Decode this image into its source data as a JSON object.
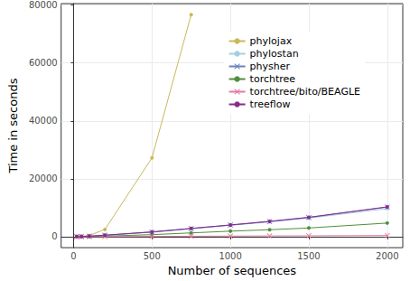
{
  "chart_data": {
    "type": "line",
    "x_label": "Number of sequences",
    "y_label": "Time in seconds",
    "x": [
      20,
      50,
      100,
      200,
      500,
      750,
      1000,
      1250,
      1500,
      2000
    ],
    "xlim": [
      -79,
      2099
    ],
    "xticks": [
      0,
      500,
      1000,
      1500,
      2000
    ],
    "ylim": [
      -3800,
      80500
    ],
    "yticks": [
      0,
      20000,
      40000,
      60000,
      80000
    ],
    "grid": true,
    "legend": "top right",
    "series": [
      {
        "name": "phylojax",
        "color": "#c9b95a",
        "marker": "circle",
        "values": [
          30,
          120,
          400,
          2500,
          27200,
          76700,
          null,
          null,
          null,
          null
        ]
      },
      {
        "name": "phylostan",
        "color": "#a6cee3",
        "marker": "circle",
        "values": [
          20,
          60,
          150,
          450,
          1500,
          2700,
          3900,
          5100,
          6400,
          9700
        ]
      },
      {
        "name": "physher",
        "color": "#6a80c0",
        "marker": "cross",
        "values": [
          25,
          70,
          170,
          500,
          1600,
          2800,
          4000,
          5200,
          6600,
          10200
        ]
      },
      {
        "name": "torchtree",
        "color": "#4f8f3a",
        "marker": "circle",
        "values": [
          10,
          30,
          80,
          200,
          700,
          1300,
          1900,
          2400,
          3000,
          4700
        ]
      },
      {
        "name": "torchtree/bito/BEAGLE",
        "color": "#e07aa0",
        "marker": "cross",
        "values": [
          5,
          10,
          20,
          40,
          100,
          150,
          200,
          250,
          300,
          400
        ]
      },
      {
        "name": "treeflow",
        "color": "#8b2a8c",
        "marker": "circle",
        "values": [
          30,
          80,
          180,
          520,
          1650,
          2850,
          4050,
          5300,
          6700,
          10300
        ]
      }
    ]
  }
}
